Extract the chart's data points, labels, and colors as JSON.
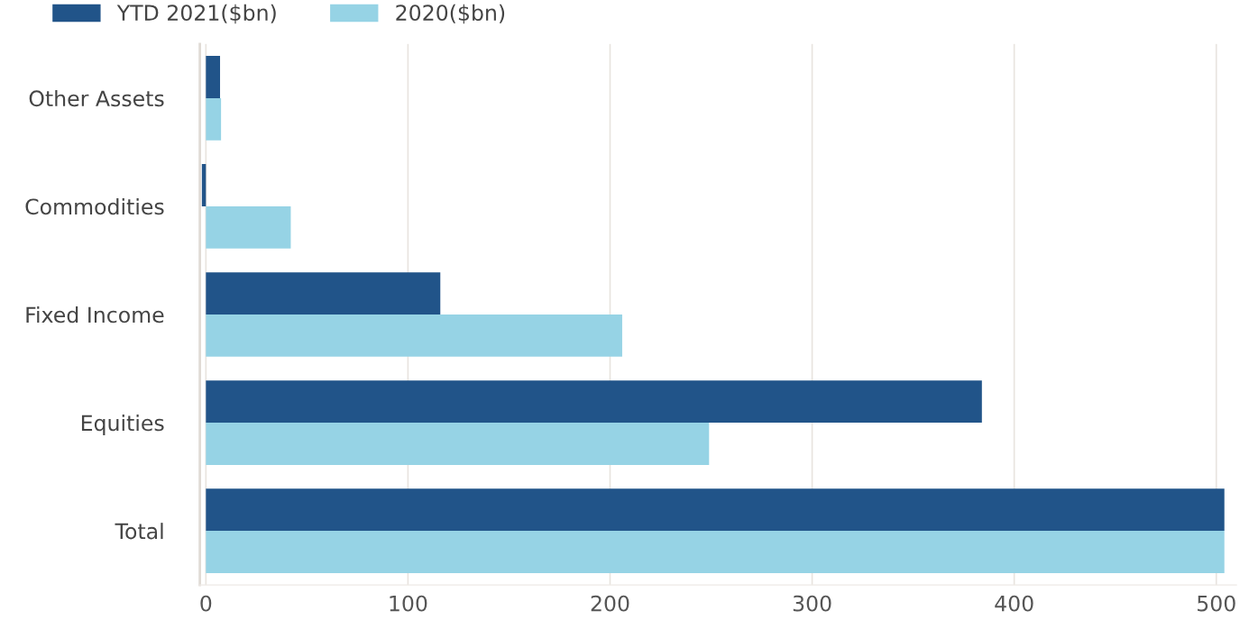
{
  "chart_data": {
    "type": "bar",
    "orientation": "horizontal",
    "categories": [
      "Other Assets",
      "Commodities",
      "Fixed Income",
      "Equities",
      "Total"
    ],
    "series": [
      {
        "name": "YTD 2021($bn)",
        "color": "#215489",
        "values": [
          7,
          -2,
          116,
          384,
          504
        ]
      },
      {
        "name": "2020($bn)",
        "color": "#96d3e5",
        "values": [
          7.5,
          42,
          206,
          249,
          504
        ]
      }
    ],
    "xlim": [
      -3,
      510
    ],
    "xticks": [
      0,
      100,
      200,
      300,
      400,
      500
    ],
    "grid": "x",
    "legend": "top left"
  }
}
